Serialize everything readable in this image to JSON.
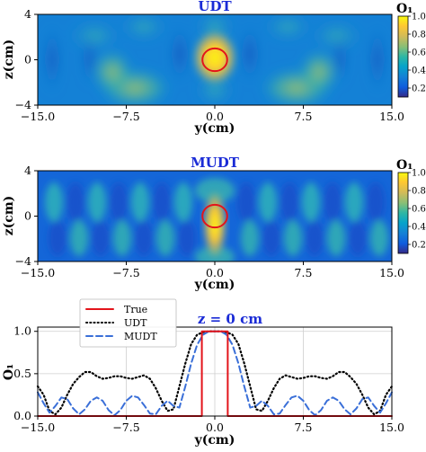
{
  "chart_data": [
    {
      "type": "heatmap",
      "title": "UDT",
      "xlabel": "y(cm)",
      "ylabel": "z(cm)",
      "xlim": [
        -15,
        15
      ],
      "ylim": [
        -4,
        4
      ],
      "xticks": [
        "−15.0",
        "−7.5",
        "0.0",
        "7.5",
        "15.0"
      ],
      "yticks": [
        "4",
        "0",
        "−4"
      ],
      "colorbar": {
        "title": "O₁",
        "ticks": [
          "1.0",
          "0.8",
          "0.6",
          "0.4",
          "0.2"
        ],
        "range": [
          0.1,
          1.0
        ]
      },
      "target_circle": {
        "center": [
          0,
          0
        ],
        "radius_cm": 1.0,
        "color": "#e3141b"
      }
    },
    {
      "type": "heatmap",
      "title": "MUDT",
      "xlabel": "y(cm)",
      "ylabel": "z(cm)",
      "xlim": [
        -15,
        15
      ],
      "ylim": [
        -4,
        4
      ],
      "xticks": [
        "−15.0",
        "−7.5",
        "0.0",
        "7.5",
        "15.0"
      ],
      "yticks": [
        "4",
        "0",
        "−4"
      ],
      "colorbar": {
        "title": "O₁",
        "ticks": [
          "1.0",
          "0.8",
          "0.6",
          "0.4",
          "0.2"
        ],
        "range": [
          0.1,
          1.0
        ]
      },
      "target_circle": {
        "center": [
          0,
          0
        ],
        "radius_cm": 1.0,
        "color": "#e3141b"
      }
    },
    {
      "type": "line",
      "title": "z = 0 cm",
      "xlabel": "y(cm)",
      "ylabel": "O₁",
      "xlim": [
        -15,
        15
      ],
      "ylim": [
        0,
        1.05
      ],
      "xticks": [
        "−15.0",
        "−7.5",
        "0.0",
        "7.5",
        "15.0"
      ],
      "yticks": [
        "0.0",
        "0.5",
        "1.0"
      ],
      "grid": true,
      "legend": "top-left",
      "series": [
        {
          "name": "True",
          "style": "solid",
          "color": "#e3141b",
          "x": [
            -15,
            -1.1,
            -1.1,
            1.1,
            1.1,
            15
          ],
          "y": [
            0.0,
            0.0,
            1.0,
            1.0,
            0.0,
            0.0
          ]
        },
        {
          "name": "UDT",
          "style": "dotted",
          "color": "#000000",
          "x": [
            -15,
            -14.5,
            -14,
            -13.5,
            -13,
            -12.5,
            -12,
            -11.5,
            -11,
            -10.5,
            -10,
            -9.5,
            -9,
            -8.5,
            -8,
            -7.5,
            -7,
            -6.5,
            -6,
            -5.5,
            -5,
            -4.5,
            -4,
            -3.5,
            -3,
            -2.5,
            -2,
            -1.5,
            -1,
            -0.5,
            0,
            0.5,
            1,
            1.5,
            2,
            2.5,
            3,
            3.5,
            4,
            4.5,
            5,
            5.5,
            6,
            6.5,
            7,
            7.5,
            8,
            8.5,
            9,
            9.5,
            10,
            10.5,
            11,
            11.5,
            12,
            12.5,
            13,
            13.5,
            14,
            14.5,
            15
          ],
          "y": [
            0.35,
            0.25,
            0.06,
            0.02,
            0.1,
            0.25,
            0.38,
            0.46,
            0.52,
            0.52,
            0.47,
            0.44,
            0.45,
            0.47,
            0.47,
            0.45,
            0.44,
            0.46,
            0.48,
            0.44,
            0.33,
            0.18,
            0.06,
            0.08,
            0.35,
            0.62,
            0.85,
            0.96,
            0.99,
            1.0,
            1.0,
            1.0,
            0.99,
            0.96,
            0.85,
            0.62,
            0.35,
            0.08,
            0.06,
            0.18,
            0.33,
            0.44,
            0.48,
            0.46,
            0.44,
            0.45,
            0.47,
            0.47,
            0.45,
            0.44,
            0.47,
            0.52,
            0.52,
            0.46,
            0.38,
            0.25,
            0.1,
            0.02,
            0.06,
            0.25,
            0.35
          ]
        },
        {
          "name": "MUDT",
          "style": "dashed",
          "color": "#3a6fd8",
          "x": [
            -15,
            -14.5,
            -14,
            -13.5,
            -13,
            -12.5,
            -12,
            -11.5,
            -11,
            -10.5,
            -10,
            -9.5,
            -9,
            -8.5,
            -8,
            -7.5,
            -7,
            -6.5,
            -6,
            -5.5,
            -5,
            -4.5,
            -4,
            -3.5,
            -3,
            -2.5,
            -2,
            -1.5,
            -1,
            -0.5,
            0,
            0.5,
            1,
            1.5,
            2,
            2.5,
            3,
            3.5,
            4,
            4.5,
            5,
            5.5,
            6,
            6.5,
            7,
            7.5,
            8,
            8.5,
            9,
            9.5,
            10,
            10.5,
            11,
            11.5,
            12,
            12.5,
            13,
            13.5,
            14,
            14.5,
            15
          ],
          "y": [
            0.28,
            0.15,
            0.04,
            0.12,
            0.22,
            0.2,
            0.09,
            0.02,
            0.08,
            0.18,
            0.22,
            0.18,
            0.07,
            0.01,
            0.07,
            0.18,
            0.24,
            0.22,
            0.13,
            0.03,
            0.02,
            0.12,
            0.18,
            0.12,
            0.1,
            0.35,
            0.62,
            0.84,
            0.96,
            1.0,
            1.0,
            1.0,
            0.96,
            0.84,
            0.62,
            0.35,
            0.1,
            0.12,
            0.18,
            0.12,
            0.02,
            0.03,
            0.13,
            0.22,
            0.24,
            0.18,
            0.07,
            0.01,
            0.07,
            0.18,
            0.22,
            0.18,
            0.08,
            0.02,
            0.09,
            0.2,
            0.22,
            0.12,
            0.04,
            0.15,
            0.28
          ]
        }
      ]
    }
  ]
}
